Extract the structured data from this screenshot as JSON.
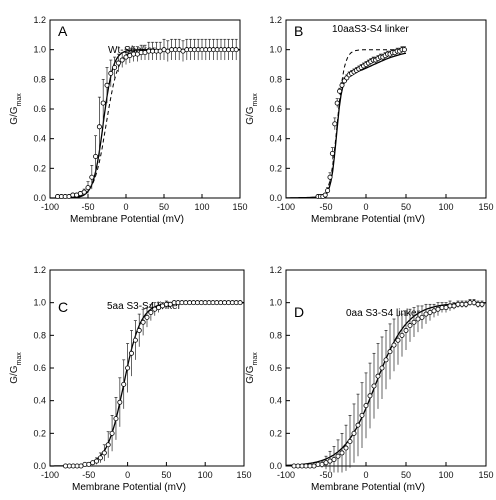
{
  "figure": {
    "panels": [
      {
        "letter": "A",
        "title": "Wt-",
        "title_italic": "Shaker"
      },
      {
        "letter": "B",
        "title": "10aaS3-S4 linker",
        "title_italic": ""
      },
      {
        "letter": "C",
        "title": "5aa S3-S4 linker",
        "title_italic": ""
      },
      {
        "letter": "D",
        "title": "0aa S3-S4 linker",
        "title_italic": ""
      }
    ]
  },
  "chart_data": [
    {
      "type": "scatter",
      "panel": "A",
      "title": "Wt-Shaker",
      "xlabel": "Membrane Potential (mV)",
      "ylabel": "G/Gmax",
      "xlim": [
        -100,
        150
      ],
      "ylim": [
        0.0,
        1.2
      ],
      "xticks": [
        -100,
        -50,
        0,
        50,
        100,
        150
      ],
      "yticks": [
        0.0,
        0.2,
        0.4,
        0.6,
        0.8,
        1.0,
        1.2
      ],
      "series": [
        {
          "x": [
            -90,
            -85,
            -80,
            -75,
            -70,
            -65,
            -60,
            -55,
            -50,
            -45,
            -40,
            -35,
            -30,
            -25,
            -20,
            -15,
            -10,
            -5,
            0,
            5,
            10,
            15,
            20,
            25,
            30,
            35,
            40,
            45,
            50,
            55,
            60,
            65,
            70,
            75,
            80,
            85,
            90,
            95,
            100,
            105,
            110,
            115,
            120,
            125,
            130,
            135,
            140,
            145
          ],
          "y": [
            0.01,
            0.01,
            0.01,
            0.01,
            0.02,
            0.02,
            0.03,
            0.04,
            0.07,
            0.14,
            0.28,
            0.48,
            0.64,
            0.76,
            0.84,
            0.88,
            0.91,
            0.93,
            0.95,
            0.96,
            0.97,
            0.97,
            0.98,
            0.98,
            0.99,
            0.99,
            0.99,
            0.99,
            1.0,
            0.99,
            1.0,
            1.0,
            1.0,
            0.99,
            1.0,
            1.0,
            1.0,
            1.0,
            1.0,
            1.0,
            1.0,
            1.0,
            1.0,
            1.0,
            1.0,
            1.0,
            1.0,
            1.0
          ],
          "error": [
            0,
            0,
            0,
            0,
            0,
            0,
            0.01,
            0.02,
            0.04,
            0.08,
            0.14,
            0.2,
            0.16,
            0.12,
            0.09,
            0.07,
            0.06,
            0.05,
            0.05,
            0.05,
            0.05,
            0.05,
            0.05,
            0.05,
            0.06,
            0.06,
            0.06,
            0.06,
            0.07,
            0.07,
            0.07,
            0.07,
            0.07,
            0.07,
            0.07,
            0.07,
            0.07,
            0.07,
            0.07,
            0.07,
            0.07,
            0.07,
            0.07,
            0.07,
            0.07,
            0.07,
            0.07,
            0.07
          ]
        }
      ],
      "fit": {
        "v_half": -30,
        "slope": 6.5
      },
      "fit2": {
        "v_half": -26,
        "slope": 8
      }
    },
    {
      "type": "scatter",
      "panel": "B",
      "title": "10aaS3-S4 linker",
      "xlabel": "Membrane Potential (mV)",
      "ylabel": "G/Gmax",
      "xlim": [
        -100,
        150
      ],
      "ylim": [
        0.0,
        1.2
      ],
      "xticks": [
        -100,
        -50,
        0,
        50,
        100,
        150
      ],
      "yticks": [
        0.0,
        0.2,
        0.4,
        0.6,
        0.8,
        1.0,
        1.2
      ],
      "series": [
        {
          "x": [
            -60,
            -57,
            -54,
            -51,
            -48,
            -45,
            -42,
            -39,
            -36,
            -33,
            -30,
            -27,
            -24,
            -21,
            -18,
            -15,
            -12,
            -9,
            -6,
            -3,
            0,
            3,
            6,
            9,
            12,
            15,
            18,
            21,
            24,
            27,
            30,
            33,
            36,
            39,
            42,
            45,
            48
          ],
          "y": [
            0.01,
            0.01,
            0.01,
            0.02,
            0.05,
            0.14,
            0.3,
            0.5,
            0.64,
            0.72,
            0.76,
            0.79,
            0.81,
            0.83,
            0.84,
            0.85,
            0.86,
            0.87,
            0.88,
            0.89,
            0.9,
            0.91,
            0.92,
            0.93,
            0.93,
            0.94,
            0.95,
            0.95,
            0.96,
            0.97,
            0.97,
            0.98,
            0.98,
            0.99,
            0.99,
            1.0,
            1.0
          ],
          "error": [
            0,
            0,
            0,
            0.01,
            0.02,
            0.03,
            0.04,
            0.04,
            0.03,
            0.02,
            0.02,
            0.02,
            0.02,
            0.02,
            0.02,
            0.02,
            0.02,
            0.02,
            0.02,
            0.02,
            0.02,
            0.02,
            0.02,
            0.02,
            0.02,
            0.02,
            0.02,
            0.02,
            0.02,
            0.02,
            0.02,
            0.02,
            0.02,
            0.02,
            0.02,
            0.02,
            0.02
          ]
        }
      ],
      "fit": {
        "v_half": -37,
        "slope": 3.5,
        "amp": 0.8,
        "v_half2": 10,
        "slope2": 20,
        "amp2": 0.2
      },
      "fit2": {
        "v_half": -36,
        "slope": 4.5
      }
    },
    {
      "type": "scatter",
      "panel": "C",
      "title": "5aa S3-S4 linker",
      "xlabel": "Membrane Potential (mV)",
      "ylabel": "G/Gmax",
      "xlim": [
        -100,
        150
      ],
      "ylim": [
        0.0,
        1.2
      ],
      "xticks": [
        -100,
        -50,
        0,
        50,
        100,
        150
      ],
      "yticks": [
        0.0,
        0.2,
        0.4,
        0.6,
        0.8,
        1.0,
        1.2
      ],
      "series": [
        {
          "x": [
            -80,
            -75,
            -70,
            -65,
            -60,
            -55,
            -50,
            -45,
            -40,
            -35,
            -30,
            -25,
            -20,
            -15,
            -10,
            -5,
            0,
            5,
            10,
            15,
            20,
            25,
            30,
            35,
            40,
            45,
            50,
            55,
            60,
            65,
            70,
            75,
            80,
            85,
            90,
            95,
            100,
            105,
            110,
            115,
            120,
            125,
            130,
            135,
            140,
            145
          ],
          "y": [
            0.0,
            0.0,
            0.0,
            0.0,
            0.0,
            0.01,
            0.01,
            0.02,
            0.03,
            0.05,
            0.08,
            0.13,
            0.2,
            0.29,
            0.39,
            0.5,
            0.6,
            0.69,
            0.77,
            0.83,
            0.88,
            0.91,
            0.94,
            0.96,
            0.97,
            0.98,
            0.99,
            0.99,
            1.0,
            1.0,
            1.0,
            1.0,
            1.0,
            1.0,
            1.0,
            1.0,
            1.0,
            1.0,
            1.0,
            1.0,
            1.0,
            1.0,
            1.0,
            1.0,
            1.0,
            1.0
          ],
          "error": [
            0,
            0,
            0,
            0,
            0,
            0,
            0.01,
            0.01,
            0.02,
            0.03,
            0.05,
            0.08,
            0.11,
            0.13,
            0.15,
            0.15,
            0.15,
            0.14,
            0.12,
            0.1,
            0.08,
            0.06,
            0.05,
            0.04,
            0.03,
            0.02,
            0.02,
            0.01,
            0.01,
            0.01,
            0.01,
            0.01,
            0.01,
            0.01,
            0.01,
            0.01,
            0.01,
            0.01,
            0.01,
            0.01,
            0.01,
            0.01,
            0.01,
            0.01,
            0.01,
            0.01
          ]
        }
      ],
      "fit": {
        "v_half": -5,
        "slope": 11
      },
      "fit2": null
    },
    {
      "type": "scatter",
      "panel": "D",
      "title": "0aa S3-S4 linker",
      "xlabel": "Membrane Potential (mV)",
      "ylabel": "G/Gmax",
      "xlim": [
        -100,
        150
      ],
      "ylim": [
        0.0,
        1.2
      ],
      "xticks": [
        -100,
        -50,
        0,
        50,
        100,
        150
      ],
      "yticks": [
        0.0,
        0.2,
        0.4,
        0.6,
        0.8,
        1.0,
        1.2
      ],
      "series": [
        {
          "x": [
            -90,
            -85,
            -80,
            -75,
            -70,
            -65,
            -60,
            -55,
            -50,
            -45,
            -40,
            -35,
            -30,
            -25,
            -20,
            -15,
            -10,
            -5,
            0,
            5,
            10,
            15,
            20,
            25,
            30,
            35,
            40,
            45,
            50,
            55,
            60,
            65,
            70,
            75,
            80,
            85,
            90,
            95,
            100,
            105,
            110,
            115,
            120,
            125,
            130,
            135,
            140,
            145
          ],
          "y": [
            0.0,
            0.0,
            0.0,
            0.0,
            0.0,
            0.0,
            0.01,
            0.01,
            0.02,
            0.03,
            0.04,
            0.06,
            0.08,
            0.11,
            0.15,
            0.2,
            0.25,
            0.31,
            0.37,
            0.43,
            0.49,
            0.55,
            0.6,
            0.65,
            0.7,
            0.74,
            0.77,
            0.8,
            0.83,
            0.86,
            0.88,
            0.9,
            0.91,
            0.93,
            0.94,
            0.95,
            0.96,
            0.97,
            0.97,
            0.98,
            0.98,
            0.99,
            0.99,
            0.99,
            1.0,
            1.0,
            0.99,
            0.99
          ],
          "error": [
            0,
            0,
            0,
            0,
            0,
            0,
            0.01,
            0.02,
            0.04,
            0.06,
            0.08,
            0.1,
            0.12,
            0.14,
            0.16,
            0.18,
            0.19,
            0.2,
            0.2,
            0.2,
            0.2,
            0.2,
            0.19,
            0.18,
            0.17,
            0.16,
            0.15,
            0.13,
            0.12,
            0.1,
            0.09,
            0.08,
            0.07,
            0.06,
            0.05,
            0.04,
            0.04,
            0.03,
            0.03,
            0.03,
            0.02,
            0.02,
            0.02,
            0.02,
            0.02,
            0.02,
            0.02,
            0.02
          ]
        }
      ],
      "fit": {
        "v_half": 12,
        "slope": 20
      },
      "fit2": null
    }
  ]
}
